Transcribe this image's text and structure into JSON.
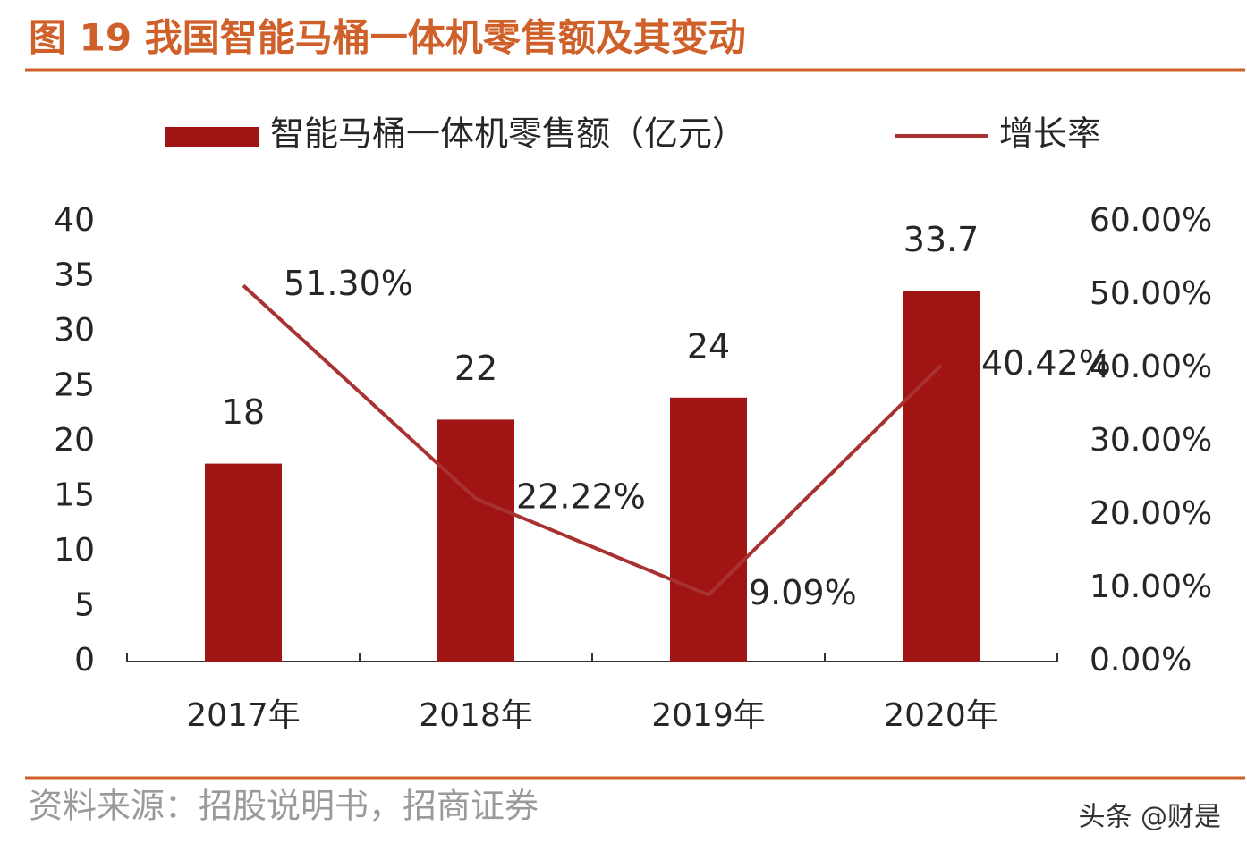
{
  "chart_data": {
    "type": "combo",
    "title": "图 19 我国智能马桶一体机零售额及其变动",
    "categories": [
      "2017年",
      "2018年",
      "2019年",
      "2020年"
    ],
    "series": [
      {
        "name": "智能马桶一体机零售额（亿元）",
        "type": "bar",
        "color": "#a01414",
        "values": [
          18,
          22,
          24,
          33.7
        ]
      },
      {
        "name": "增长率",
        "type": "line",
        "axis": "y2",
        "color": "#a83232",
        "values": [
          51.3,
          22.22,
          9.09,
          40.42
        ],
        "value_labels": [
          "51.30%",
          "22.22%",
          "9.09%",
          "40.42%"
        ]
      }
    ],
    "ylim": [
      0,
      40
    ],
    "yticks": [
      0,
      5,
      10,
      15,
      20,
      25,
      30,
      35,
      40
    ],
    "y2lim": [
      0,
      60
    ],
    "y2ticks": [
      {
        "value": 0,
        "label": "0.00%"
      },
      {
        "value": 10,
        "label": "10.00%"
      },
      {
        "value": 20,
        "label": "20.00%"
      },
      {
        "value": 30,
        "label": "30.00%"
      },
      {
        "value": 40,
        "label": "40.00%"
      },
      {
        "value": 50,
        "label": "50.00%"
      },
      {
        "value": 60,
        "label": "60.00%"
      }
    ],
    "grid": false,
    "source": "资料来源：招股说明书，招商证券"
  },
  "watermark": "头条 @财是"
}
